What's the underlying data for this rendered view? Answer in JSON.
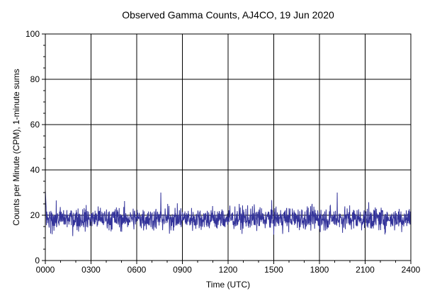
{
  "chart_data": {
    "type": "line",
    "title": "Observed Gamma Counts, AJ4CO, 19 Jun 2020",
    "xlabel": "Time (UTC)",
    "ylabel": "Counts per Minute (CPM), 1-minute sums",
    "xlim": [
      0,
      1440
    ],
    "ylim": [
      0,
      100
    ],
    "x_ticks": [
      {
        "value": 0,
        "label": "0000"
      },
      {
        "value": 180,
        "label": "0300"
      },
      {
        "value": 360,
        "label": "0600"
      },
      {
        "value": 540,
        "label": "0900"
      },
      {
        "value": 720,
        "label": "1200"
      },
      {
        "value": 900,
        "label": "1500"
      },
      {
        "value": 1080,
        "label": "1800"
      },
      {
        "value": 1260,
        "label": "2100"
      },
      {
        "value": 1440,
        "label": "2400"
      }
    ],
    "y_ticks": [
      {
        "value": 0,
        "label": "0"
      },
      {
        "value": 20,
        "label": "20"
      },
      {
        "value": 40,
        "label": "40"
      },
      {
        "value": 60,
        "label": "60"
      },
      {
        "value": 80,
        "label": "80"
      },
      {
        "value": 100,
        "label": "100"
      }
    ],
    "grid": true,
    "series": [
      {
        "color": "#33339a",
        "sampling": "1-minute sums, 0000-2400 UTC",
        "mean": 18.5,
        "typical_range": [
          10,
          26
        ],
        "max": 31,
        "min": 6
      }
    ]
  },
  "colors": {
    "series_line": "#33339a",
    "grid": "#000000",
    "axis": "#000000",
    "background": "#ffffff"
  }
}
